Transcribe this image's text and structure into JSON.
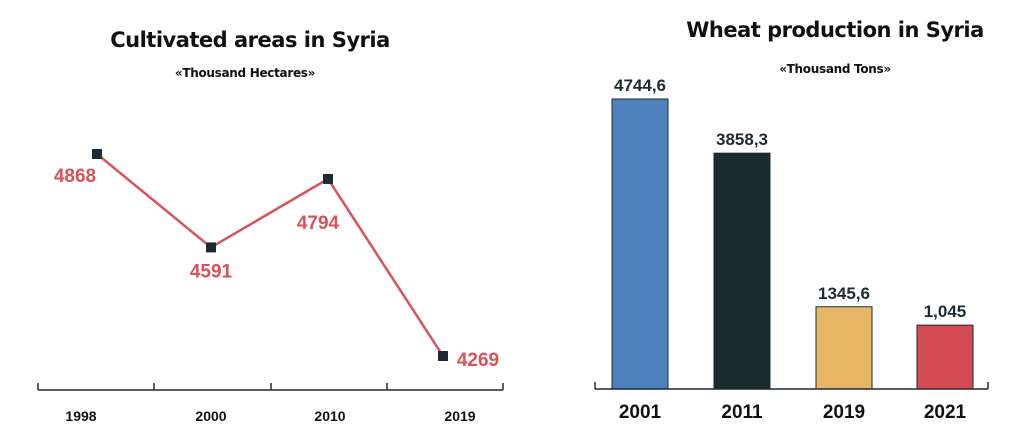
{
  "charts": {
    "left_title": "Cultivated areas in Syria",
    "left_subtitle": "«Thousand Hectares»",
    "right_title": "Wheat production in Syria",
    "right_subtitle": "«Thousand Tons»"
  },
  "colors": {
    "line": "#d9525a",
    "marker": "#1e2a32",
    "bars": [
      "#4f81bd",
      "#1c2b32",
      "#e8b765",
      "#d34a53"
    ],
    "axis": "#1e2a32"
  },
  "chart_data": [
    {
      "type": "line",
      "title": "Cultivated areas in Syria",
      "subtitle": "«Thousand Hectares»",
      "x": [
        "1998",
        "2000",
        "2010",
        "2019"
      ],
      "y": [
        4868,
        4591,
        4794,
        4269
      ],
      "data_labels": [
        "4868",
        "4591",
        "4794",
        "4269"
      ],
      "grid": false,
      "legend": "none"
    },
    {
      "type": "bar",
      "title": "Wheat production in Syria",
      "subtitle": "«Thousand Tons»",
      "categories": [
        "2001",
        "2011",
        "2019",
        "2021"
      ],
      "values": [
        4744.6,
        3858.3,
        1345.6,
        1045
      ],
      "data_labels": [
        "4744,6",
        "3858,3",
        "1345,6",
        "1,045"
      ],
      "ylim": [
        0,
        4744.6
      ],
      "grid": false,
      "legend": "none"
    }
  ]
}
